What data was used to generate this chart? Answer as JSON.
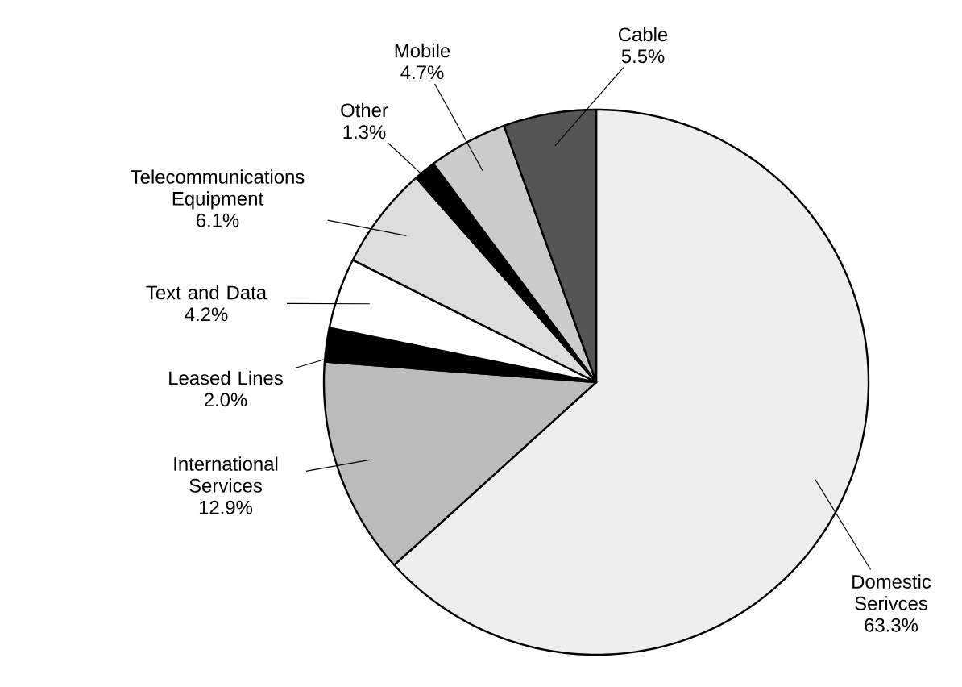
{
  "chart_data": {
    "type": "pie",
    "categories": [
      "Domestic Serivces",
      "International Services",
      "Leased Lines",
      "Text and Data",
      "Telecommunications Equipment",
      "Other",
      "Mobile",
      "Cable"
    ],
    "values": [
      63.3,
      12.9,
      2.0,
      4.2,
      6.1,
      1.3,
      4.7,
      5.5
    ],
    "value_labels": [
      "63.3%",
      "12.9%",
      "2.0%",
      "4.2%",
      "6.1%",
      "1.3%",
      "4.7%",
      "5.5%"
    ],
    "colors": [
      "#eeeeee",
      "#bbbbbb",
      "#000000",
      "#ffffff",
      "#dddddd",
      "#000000",
      "#cccccc",
      "#555555"
    ]
  }
}
